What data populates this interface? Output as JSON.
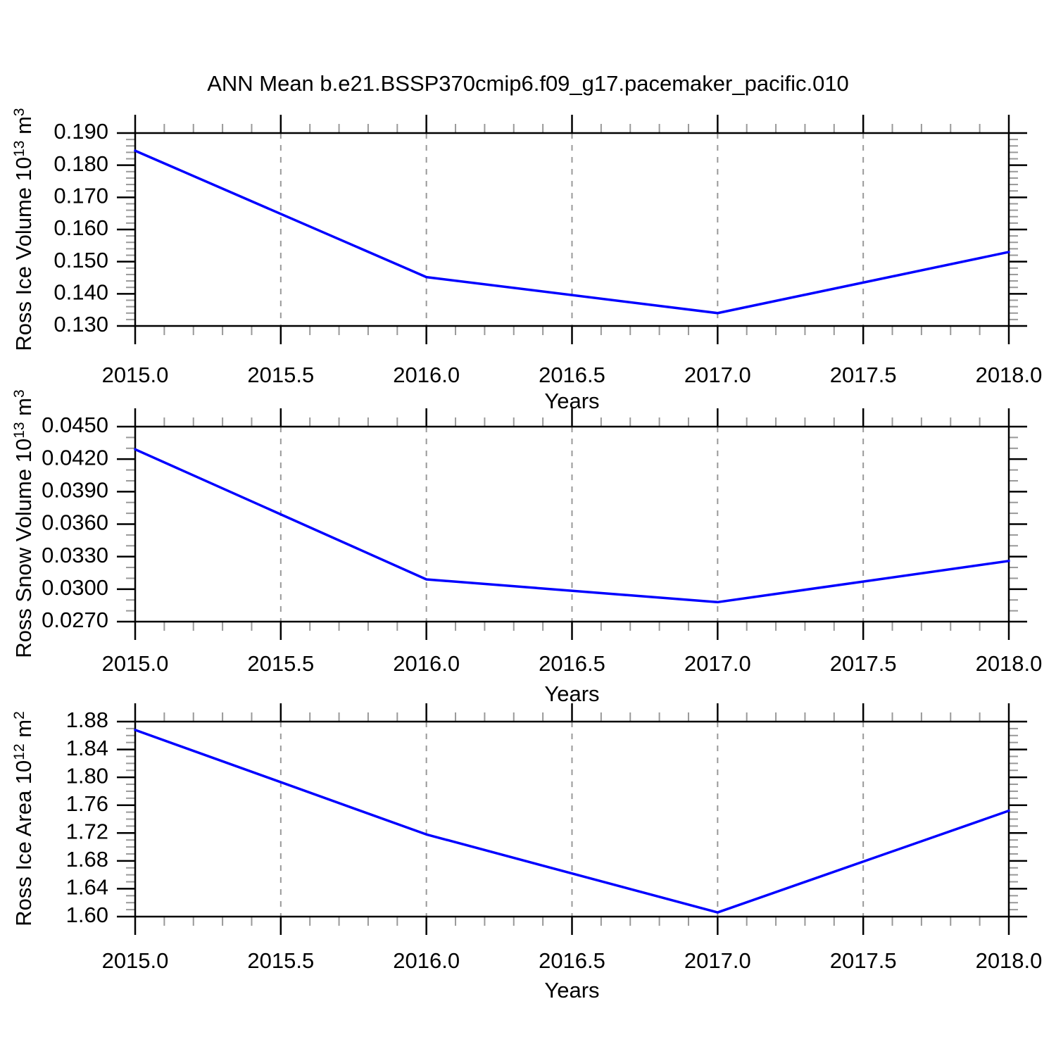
{
  "title": "ANN Mean b.e21.BSSP370cmip6.f09_g17.pacemaker_pacific.010",
  "colors": {
    "line": "#0000ff",
    "axis": "#000000",
    "major_tick": "#000000",
    "minor_tick": "#999999",
    "gridline": "#999999",
    "text": "#000000",
    "background": "#ffffff"
  },
  "x_axis": {
    "label": "Years",
    "min": 2015.0,
    "max": 2018.0,
    "major_step": 0.5,
    "minor_step": 0.1,
    "tick_labels": [
      "2015.0",
      "2015.5",
      "2016.0",
      "2016.5",
      "2017.0",
      "2017.5",
      "2018.0"
    ],
    "gridlines_at": [
      2015.5,
      2016.0,
      2016.5,
      2017.0,
      2017.5
    ],
    "gridline_style": "dashed"
  },
  "chart_data": [
    {
      "type": "line",
      "panel": "top",
      "ylabel": {
        "base": "Ross Ice Volume 10",
        "exp": "13",
        "unit": " m",
        "unit_exp": "3"
      },
      "xlabel": "Years",
      "x": [
        2015.0,
        2016.0,
        2017.0,
        2018.0
      ],
      "values": [
        0.1845,
        0.1452,
        0.134,
        0.153
      ],
      "ylim": [
        0.13,
        0.19
      ],
      "ytick_values": [
        0.19,
        0.18,
        0.17,
        0.16,
        0.15,
        0.14,
        0.13
      ],
      "ytick_labels": [
        "0.190",
        "0.180",
        "0.170",
        "0.160",
        "0.150",
        "0.140",
        "0.130"
      ],
      "yminor_step": 0.002,
      "grid": "vertical-dashed",
      "legend": "none"
    },
    {
      "type": "line",
      "panel": "middle",
      "ylabel": {
        "base": "Ross Snow Volume 10",
        "exp": "13",
        "unit": " m",
        "unit_exp": "3"
      },
      "xlabel": "Years",
      "x": [
        2015.0,
        2016.0,
        2017.0,
        2018.0
      ],
      "values": [
        0.0429,
        0.0309,
        0.0288,
        0.0326
      ],
      "ylim": [
        0.027,
        0.045
      ],
      "ytick_values": [
        0.045,
        0.042,
        0.039,
        0.036,
        0.033,
        0.03,
        0.027
      ],
      "ytick_labels": [
        "0.0450",
        "0.0420",
        "0.0390",
        "0.0360",
        "0.0330",
        "0.0300",
        "0.0270"
      ],
      "yminor_step": 0.001,
      "grid": "vertical-dashed",
      "legend": "none"
    },
    {
      "type": "line",
      "panel": "bottom",
      "ylabel": {
        "base": "Ross Ice Area 10",
        "exp": "12",
        "unit": " m",
        "unit_exp": "2"
      },
      "xlabel": "Years",
      "x": [
        2015.0,
        2016.0,
        2017.0,
        2018.0
      ],
      "values": [
        1.868,
        1.718,
        1.606,
        1.752
      ],
      "ylim": [
        1.6,
        1.88
      ],
      "ytick_values": [
        1.88,
        1.84,
        1.8,
        1.76,
        1.72,
        1.68,
        1.64,
        1.6
      ],
      "ytick_labels": [
        "1.88",
        "1.84",
        "1.80",
        "1.76",
        "1.72",
        "1.68",
        "1.64",
        "1.60"
      ],
      "yminor_step": 0.01,
      "grid": "vertical-dashed",
      "legend": "none"
    }
  ]
}
